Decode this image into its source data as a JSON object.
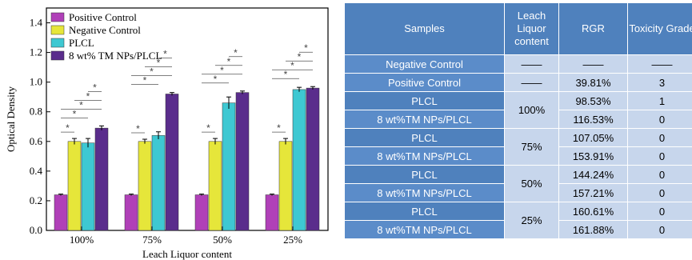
{
  "chart_data": {
    "type": "bar",
    "categories": [
      "100%",
      "75%",
      "50%",
      "25%"
    ],
    "series": [
      {
        "name": "Positive Control",
        "values": [
          0.24,
          0.24,
          0.24,
          0.24
        ],
        "errors": [
          0.005,
          0.005,
          0.005,
          0.005
        ],
        "color": "#b040b8"
      },
      {
        "name": "Negative Control",
        "values": [
          0.6,
          0.6,
          0.6,
          0.6
        ],
        "errors": [
          0.02,
          0.015,
          0.02,
          0.02
        ],
        "color": "#e6e63a"
      },
      {
        "name": "PLCL",
        "values": [
          0.59,
          0.64,
          0.86,
          0.95
        ],
        "errors": [
          0.03,
          0.025,
          0.04,
          0.015
        ],
        "color": "#3ec8d2"
      },
      {
        "name": "8 wt% TM NPs/PLCL",
        "values": [
          0.69,
          0.92,
          0.93,
          0.96
        ],
        "errors": [
          0.015,
          0.01,
          0.01,
          0.01
        ],
        "color": "#5a2d8c"
      }
    ],
    "xlabel": "Leach Liquor content",
    "ylabel": "Optical Density",
    "ylim": [
      0.0,
      1.5
    ],
    "yticks": [
      "0.0",
      "0.2",
      "0.4",
      "0.6",
      "0.8",
      "1.0",
      "1.2",
      "1.4"
    ],
    "grid": false,
    "legend_position": "top-left",
    "significance_marker": "*"
  },
  "table": {
    "headers": [
      "Samples",
      "Leach Liquor content",
      "RGR",
      "Toxicity Grade"
    ],
    "rows": [
      {
        "sample": "Negative Control",
        "content": "——",
        "rgr": "——",
        "grade": "——"
      },
      {
        "sample": "Positive Control",
        "content": "——",
        "rgr": "39.81%",
        "grade": "3"
      },
      {
        "sample": "PLCL",
        "content": "100%",
        "rgr": "98.53%",
        "grade": "1"
      },
      {
        "sample": "8 wt%TM NPs/PLCL",
        "content": "",
        "rgr": "116.53%",
        "grade": "0"
      },
      {
        "sample": "PLCL",
        "content": "75%",
        "rgr": "107.05%",
        "grade": "0"
      },
      {
        "sample": "8 wt%TM NPs/PLCL",
        "content": "",
        "rgr": "153.91%",
        "grade": "0"
      },
      {
        "sample": "PLCL",
        "content": "50%",
        "rgr": "144.24%",
        "grade": "0"
      },
      {
        "sample": "8 wt%TM NPs/PLCL",
        "content": "",
        "rgr": "157.21%",
        "grade": "0"
      },
      {
        "sample": "PLCL",
        "content": "25%",
        "rgr": "160.61%",
        "grade": "0"
      },
      {
        "sample": "8 wt%TM NPs/PLCL",
        "content": "",
        "rgr": "161.88%",
        "grade": "0"
      }
    ]
  }
}
